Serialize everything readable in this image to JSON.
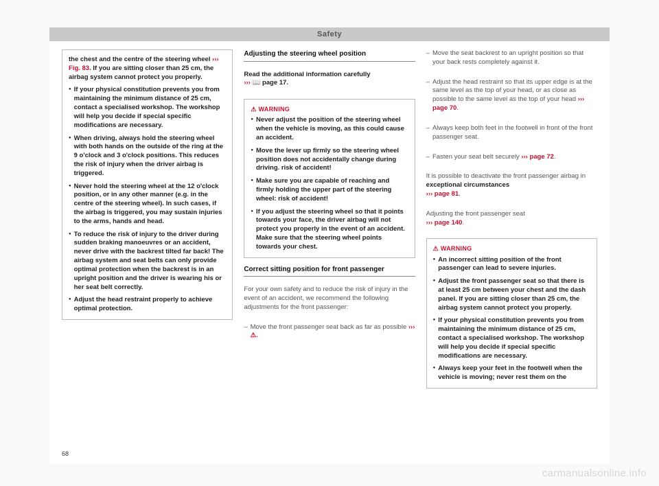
{
  "header": {
    "title": "Safety"
  },
  "page_number": "68",
  "watermark": "carmanualsonline.info",
  "col1": {
    "box1": {
      "p1a": "the chest and the centre of the steering wheel ",
      "p1ref": "››› Fig. 83",
      "p1b": ". If you are sitting closer than 25 cm, the airbag system cannot protect you properly.",
      "b1": "If your physical constitution prevents you from maintaining the minimum distance of 25 cm, contact a specialised workshop. The workshop will help you decide if special specific modifications are necessary.",
      "b2": "When driving, always hold the steering wheel with both hands on the outside of the ring at the 9 o'clock and 3 o'clock positions. This reduces the risk of injury when the driver airbag is triggered.",
      "b3": "Never hold the steering wheel at the 12 o'clock position, or in any other manner (e.g. in the centre of the steering wheel). In such cases, if the airbag is triggered, you may sustain injuries to the arms, hands and head.",
      "b4": "To reduce the risk of injury to the driver during sudden braking manoeuvres or an accident, never drive with the backrest tilted far back! The airbag system and seat belts can only provide optimal protection when the backrest is in an upright position and the driver is wearing his or her seat belt correctly.",
      "b5": "Adjust the head restraint properly to achieve optimal protection."
    }
  },
  "col2": {
    "sec1_title": "Adjusting the steering wheel position",
    "sec1_text_a": "Read the additional information carefully",
    "sec1_text_b": "page 17.",
    "warn1": {
      "b1": "Never adjust the position of the steering wheel when the vehicle is moving, as this could cause an accident.",
      "b2": "Move the lever up firmly so the steering wheel position does not accidentally change during driving. risk of accident!",
      "b3": "Make sure you are capable of reaching and firmly holding the upper part of the steering wheel: risk of accident!",
      "b4": "If you adjust the steering wheel so that it points towards your face, the driver airbag will not protect you properly in the event of an accident. Make sure that the steering wheel points towards your chest."
    },
    "sec2_title": "Correct sitting position for front passenger",
    "sec2_p1": "For your own safety and to reduce the risk of injury in the event of an accident, we recommend the following adjustments for the front passenger:",
    "sec2_d1a": "Move the front passenger seat back as far as possible ",
    "sec2_d1b": "››› ⚠."
  },
  "col3": {
    "d1": "Move the seat backrest to an upright position so that your back rests completely against it.",
    "d2a": "Adjust the head restraint so that its upper edge is at the same level as the top of your head, or as close as possible to the same level as the top of your head ",
    "d2ref": "››› page 70",
    "d2b": ".",
    "d3": "Always keep both feet in the footwell in front of the front passenger seat.",
    "d4a": "Fasten your seat belt securely ",
    "d4ref": "››› page 72",
    "d4b": ".",
    "p1a": "It is possible to deactivate the front passenger airbag in ",
    "p1b": "exceptional circumstances",
    "p1ref": "››› page 81",
    "p1c": ".",
    "p2a": "Adjusting the front passenger seat",
    "p2ref": "››› page 140",
    "p2b": ".",
    "warn": {
      "b1": "An incorrect sitting position of the front passenger can lead to severe injuries.",
      "b2": "Adjust the front passenger seat so that there is at least 25 cm between your chest and the dash panel. If you are sitting closer than 25 cm, the airbag system cannot protect you properly.",
      "b3": "If your physical constitution prevents you from maintaining the minimum distance of 25 cm, contact a specialised workshop. The workshop will help you decide if special specific modifications are necessary.",
      "b4": "Always keep your feet in the footwell when the vehicle is moving; never rest them on the"
    }
  }
}
